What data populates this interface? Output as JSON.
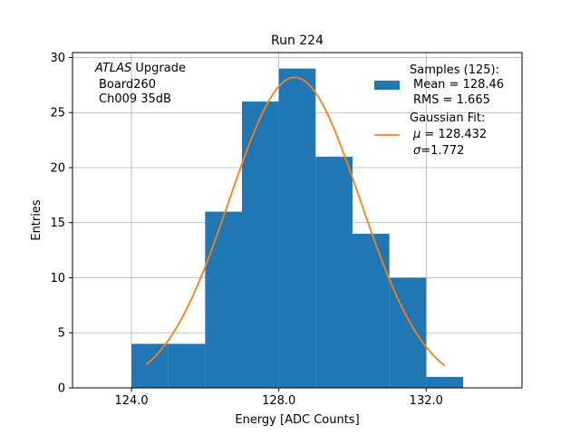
{
  "chart_data": {
    "type": "bar",
    "title": "Run 224",
    "xlabel": "Energy [ADC Counts]",
    "ylabel": "Entries",
    "xlim": [
      122.4,
      134.6
    ],
    "ylim": [
      0,
      30.45
    ],
    "grid": true,
    "x_ticks": [
      124.0,
      128.0,
      132.0
    ],
    "x_tick_labels": [
      "124.0",
      "128.0",
      "132.0"
    ],
    "y_ticks": [
      0,
      5,
      10,
      15,
      20,
      25,
      30
    ],
    "y_tick_labels": [
      "0",
      "5",
      "10",
      "15",
      "20",
      "25",
      "30"
    ],
    "annotation": {
      "italic": "ATLAS",
      "rest": " Upgrade",
      "line2": "Board260",
      "line3": "Ch009 35dB"
    },
    "histogram": {
      "bin_edges": [
        124.0,
        125.0,
        126.0,
        127.0,
        128.0,
        129.0,
        130.0,
        131.0,
        132.0,
        133.0
      ],
      "counts": [
        4,
        4,
        16,
        26,
        29,
        21,
        14,
        10,
        1
      ],
      "color": "#1f77b4"
    },
    "fit": {
      "type": "gaussian",
      "mu": 128.432,
      "sigma": 1.772,
      "peak": 28.2,
      "x_range": [
        124.4,
        132.5
      ],
      "color": "#ff7f0e"
    },
    "legend": {
      "placement": "top-right",
      "samples_title": "Samples (125):",
      "samples_mean": "Mean = 128.46",
      "samples_rms": "RMS = 1.665",
      "fit_title": "Gaussian Fit:",
      "fit_mu_symbol": "μ",
      "fit_mu_value": " = 128.432",
      "fit_sigma_symbol": "σ",
      "fit_sigma_value": "=1.772"
    }
  }
}
